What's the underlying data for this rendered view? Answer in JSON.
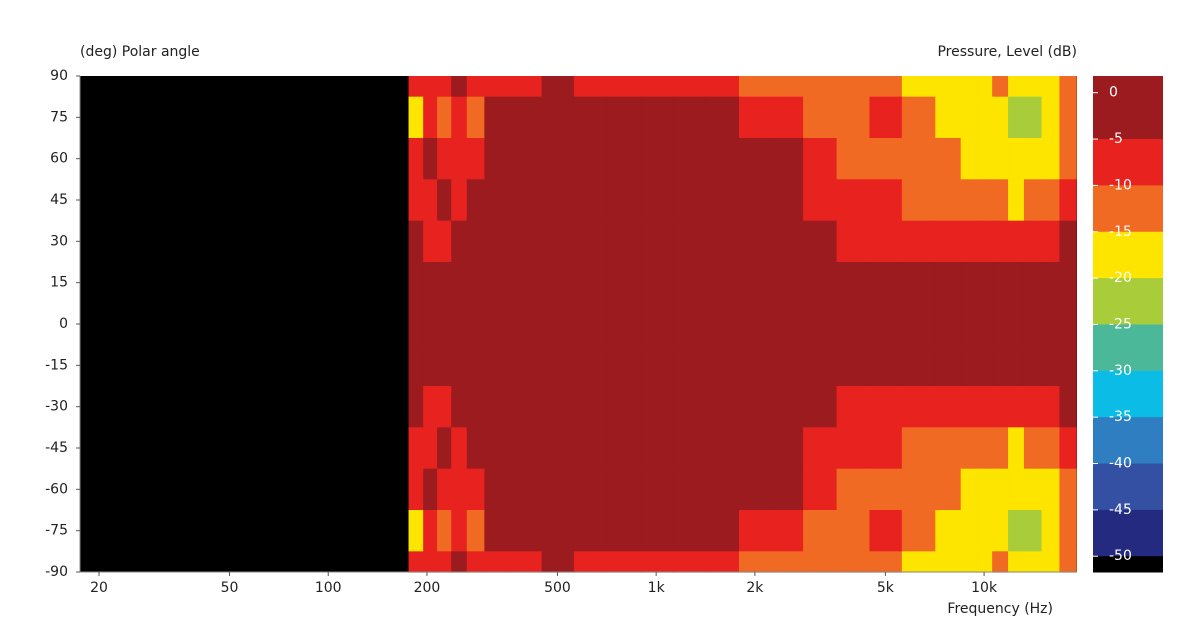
{
  "chart_data": {
    "type": "heatmap",
    "title": "(deg)  Polar angle",
    "colorbar_label": "Pressure, Level  (dB)",
    "x_label": "Frequency  (Hz)",
    "log_x": true,
    "background": "#000000",
    "xlim": [
      17.5,
      19200
    ],
    "xticks": [
      20,
      50,
      100,
      200,
      500,
      {
        "value": 1000,
        "label": "1k"
      },
      {
        "value": 2000,
        "label": "2k"
      },
      {
        "value": 5000,
        "label": "5k"
      },
      {
        "value": 10000,
        "label": "10k"
      }
    ],
    "ylim": [
      -90,
      90
    ],
    "yticks": [
      90,
      75,
      60,
      45,
      30,
      15,
      0,
      -15,
      -30,
      -45,
      -60,
      -75,
      -90
    ],
    "x": [
      185,
      205,
      225,
      250,
      280,
      320,
      400,
      500,
      630,
      800,
      1000,
      1250,
      1600,
      2000,
      2500,
      3150,
      4000,
      5000,
      6300,
      8000,
      9000,
      10000,
      11200,
      12500,
      14000,
      16000,
      18000
    ],
    "y": [
      90,
      75,
      60,
      45,
      30,
      15,
      0,
      -15,
      -30,
      -45,
      -60,
      -75,
      -90
    ],
    "z": [
      [
        -7,
        -7,
        -7,
        -2,
        -7,
        -7,
        -7,
        -2,
        -7,
        -7,
        -7,
        -7,
        -7,
        -12,
        -12,
        -12,
        -12,
        -12,
        -17,
        -17,
        -17,
        -17,
        -12,
        -17,
        -17,
        -17,
        -12
      ],
      [
        -17,
        -7,
        -12,
        -7,
        -12,
        -2,
        -2,
        -2,
        -2,
        -2,
        -2,
        -2,
        -2,
        -7,
        -7,
        -12,
        -12,
        -7,
        -12,
        -17,
        -17,
        -17,
        -17,
        -22,
        -22,
        -17,
        -12
      ],
      [
        -7,
        -2,
        -7,
        -7,
        -7,
        -2,
        -2,
        -2,
        -2,
        -2,
        -2,
        -2,
        -2,
        -2,
        -2,
        -7,
        -12,
        -12,
        -12,
        -12,
        -17,
        -17,
        -17,
        -17,
        -17,
        -17,
        -12
      ],
      [
        -7,
        -7,
        -2,
        -7,
        -2,
        -2,
        -2,
        -2,
        -2,
        -2,
        -2,
        -2,
        -2,
        -2,
        -2,
        -7,
        -7,
        -7,
        -12,
        -12,
        -12,
        -12,
        -12,
        -17,
        -12,
        -12,
        -7
      ],
      [
        -2,
        -7,
        -7,
        -2,
        -2,
        -2,
        -2,
        -2,
        -2,
        -2,
        -2,
        -2,
        -2,
        -2,
        -2,
        -2,
        -7,
        -7,
        -7,
        -7,
        -7,
        -7,
        -7,
        -7,
        -7,
        -7,
        -2
      ],
      [
        -2,
        -2,
        -2,
        -2,
        -2,
        -2,
        -2,
        -2,
        -2,
        -2,
        -2,
        -2,
        -2,
        -2,
        -2,
        -2,
        -2,
        -2,
        -2,
        -2,
        -2,
        -2,
        -2,
        -2,
        -2,
        -2,
        -2
      ],
      [
        -2,
        -2,
        -2,
        -2,
        -2,
        -2,
        -2,
        -2,
        -2,
        -2,
        -2,
        -2,
        -2,
        -2,
        -2,
        -2,
        -2,
        -2,
        -2,
        -2,
        -2,
        -2,
        -2,
        -2,
        -2,
        -2,
        -2
      ],
      [
        -2,
        -2,
        -2,
        -2,
        -2,
        -2,
        -2,
        -2,
        -2,
        -2,
        -2,
        -2,
        -2,
        -2,
        -2,
        -2,
        -2,
        -2,
        -2,
        -2,
        -2,
        -2,
        -2,
        -2,
        -2,
        -2,
        -2
      ],
      [
        -2,
        -7,
        -7,
        -2,
        -2,
        -2,
        -2,
        -2,
        -2,
        -2,
        -2,
        -2,
        -2,
        -2,
        -2,
        -2,
        -7,
        -7,
        -7,
        -7,
        -7,
        -7,
        -7,
        -7,
        -7,
        -7,
        -2
      ],
      [
        -7,
        -7,
        -2,
        -7,
        -2,
        -2,
        -2,
        -2,
        -2,
        -2,
        -2,
        -2,
        -2,
        -2,
        -2,
        -7,
        -7,
        -7,
        -12,
        -12,
        -12,
        -12,
        -12,
        -17,
        -12,
        -12,
        -7
      ],
      [
        -7,
        -2,
        -7,
        -7,
        -7,
        -2,
        -2,
        -2,
        -2,
        -2,
        -2,
        -2,
        -2,
        -2,
        -2,
        -7,
        -12,
        -12,
        -12,
        -12,
        -17,
        -17,
        -17,
        -17,
        -17,
        -17,
        -12
      ],
      [
        -17,
        -7,
        -12,
        -7,
        -12,
        -2,
        -2,
        -2,
        -2,
        -2,
        -2,
        -2,
        -2,
        -7,
        -7,
        -12,
        -12,
        -7,
        -12,
        -17,
        -17,
        -17,
        -17,
        -22,
        -22,
        -17,
        -12
      ],
      [
        -7,
        -7,
        -7,
        -2,
        -7,
        -7,
        -7,
        -2,
        -7,
        -7,
        -7,
        -7,
        -7,
        -12,
        -12,
        -12,
        -12,
        -12,
        -17,
        -17,
        -17,
        -17,
        -12,
        -17,
        -17,
        -17,
        -12
      ]
    ],
    "zlim": [
      1.8,
      -51.7
    ],
    "levels": [
      0,
      -5,
      -10,
      -15,
      -20,
      -25,
      -30,
      -35,
      -40,
      -45,
      -50
    ],
    "colors": [
      "#9b1b1e",
      "#e8231f",
      "#f06a24",
      "#fde500",
      "#a9cd3a",
      "#4cb89a",
      "#0bbde6",
      "#2f7ec2",
      "#3350a3",
      "#232a80",
      "#000000"
    ]
  }
}
